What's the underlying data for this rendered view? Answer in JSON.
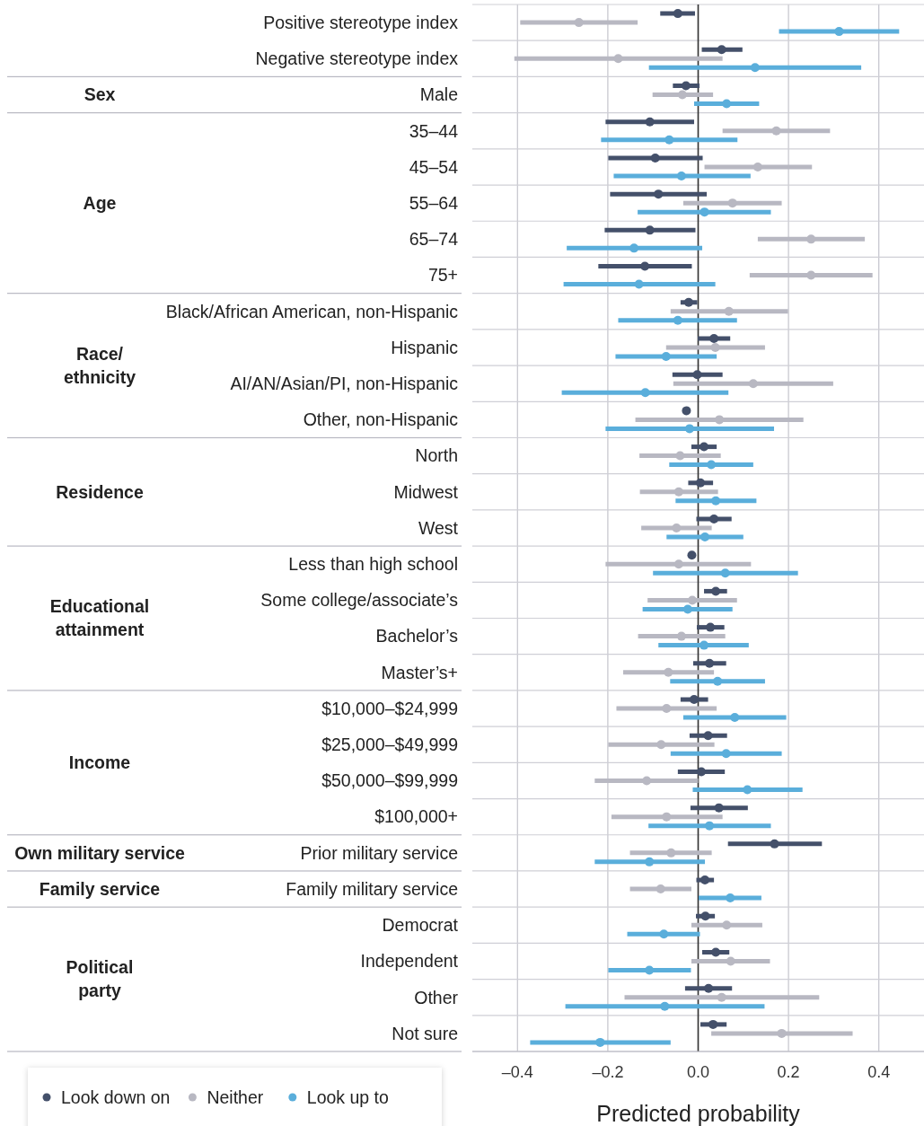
{
  "chart_data": {
    "type": "scatter",
    "orientation": "horizontal",
    "xlabel": "Predicted probability",
    "categories": [
      "Positive stereotype index",
      "Negative stereotype index",
      "Male",
      "35–44",
      "45–54",
      "55–64",
      "65–74",
      "75+",
      "Black/African American, non-Hispanic",
      "Hispanic",
      "AI/AN/Asian/PI, non-Hispanic",
      "Other, non-Hispanic",
      "North",
      "Midwest",
      "West",
      "Less than high school",
      "Some college/associate’s",
      "Bachelor’s",
      "Master’s+",
      "$10,000–$24,999",
      "$25,000–$49,999",
      "$50,000–$99,999",
      "$100,000+",
      "Prior military service",
      "Family military service",
      "Democrat",
      "Independent",
      "Other",
      "Not sure"
    ],
    "annotations": [
      "Sex",
      "Age",
      "Race/\nethnicity",
      "Residence",
      "Educational\nattainment",
      "Income",
      "Own military service",
      "Family service",
      "Political\nparty"
    ],
    "series": [
      {
        "name": "Look down on",
        "color": "#44506a",
        "values": [
          -0.045,
          0.052,
          -0.027,
          -0.107,
          -0.095,
          -0.088,
          -0.107,
          -0.118,
          -0.021,
          0.035,
          -0.002,
          -0.026,
          0.013,
          0.005,
          0.035,
          -0.014,
          0.039,
          0.027,
          0.025,
          -0.009,
          0.022,
          0.007,
          0.046,
          0.169,
          0.015,
          0.016,
          0.039,
          0.023,
          0.033
        ],
        "errors": [
          [
            -0.084,
            -0.007
          ],
          [
            0.008,
            0.098
          ],
          [
            -0.056,
            0.003
          ],
          [
            -0.205,
            -0.009
          ],
          [
            -0.199,
            0.01
          ],
          [
            -0.195,
            0.019
          ],
          [
            -0.207,
            -0.006
          ],
          [
            -0.221,
            -0.014
          ],
          [
            -0.039,
            -0.002
          ],
          [
            -0.001,
            0.071
          ],
          [
            -0.057,
            0.054
          ],
          null,
          [
            -0.015,
            0.041
          ],
          [
            -0.022,
            0.033
          ],
          [
            -0.004,
            0.074
          ],
          null,
          [
            0.013,
            0.064
          ],
          [
            -0.003,
            0.058
          ],
          [
            -0.011,
            0.062
          ],
          [
            -0.039,
            0.022
          ],
          [
            -0.019,
            0.064
          ],
          [
            -0.045,
            0.059
          ],
          [
            -0.017,
            0.11
          ],
          [
            0.066,
            0.274
          ],
          [
            -0.004,
            0.035
          ],
          [
            -0.005,
            0.037
          ],
          [
            0.009,
            0.069
          ],
          [
            -0.029,
            0.075
          ],
          [
            0.005,
            0.063
          ]
        ]
      },
      {
        "name": "Neither",
        "color": "#b8b8c2",
        "values": [
          -0.264,
          -0.177,
          -0.035,
          0.173,
          0.132,
          0.076,
          0.25,
          0.25,
          0.068,
          0.038,
          0.122,
          0.047,
          -0.04,
          -0.043,
          -0.048,
          -0.043,
          -0.013,
          -0.037,
          -0.066,
          -0.07,
          -0.082,
          -0.114,
          -0.07,
          -0.06,
          -0.083,
          0.063,
          0.072,
          0.052,
          0.185
        ],
        "errors": [
          [
            -0.394,
            -0.134
          ],
          [
            -0.407,
            0.054
          ],
          [
            -0.101,
            0.033
          ],
          [
            0.054,
            0.292
          ],
          [
            0.014,
            0.252
          ],
          [
            -0.033,
            0.185
          ],
          [
            0.132,
            0.369
          ],
          [
            0.114,
            0.386
          ],
          [
            -0.061,
            0.199
          ],
          [
            -0.071,
            0.148
          ],
          [
            -0.055,
            0.299
          ],
          [
            -0.139,
            0.233
          ],
          [
            -0.13,
            0.05
          ],
          [
            -0.129,
            0.044
          ],
          [
            -0.126,
            0.03
          ],
          [
            -0.205,
            0.117
          ],
          [
            -0.112,
            0.086
          ],
          [
            -0.133,
            0.06
          ],
          [
            -0.166,
            0.035
          ],
          [
            -0.181,
            0.041
          ],
          [
            -0.199,
            0.036
          ],
          [
            -0.229,
            0.0
          ],
          [
            -0.192,
            0.054
          ],
          [
            -0.151,
            0.03
          ],
          [
            -0.151,
            -0.015
          ],
          [
            -0.015,
            0.142
          ],
          [
            -0.015,
            0.159
          ],
          [
            -0.163,
            0.268
          ],
          [
            0.029,
            0.342
          ]
        ]
      },
      {
        "name": "Look up to",
        "color": "#5aaedb",
        "values": [
          0.312,
          0.126,
          0.063,
          -0.064,
          -0.037,
          0.014,
          -0.142,
          -0.131,
          -0.045,
          -0.071,
          -0.117,
          -0.019,
          0.029,
          0.039,
          0.015,
          0.06,
          -0.023,
          0.013,
          0.043,
          0.081,
          0.062,
          0.109,
          0.025,
          -0.108,
          0.071,
          -0.076,
          -0.108,
          -0.074,
          -0.217
        ],
        "errors": [
          [
            0.179,
            0.445
          ],
          [
            -0.109,
            0.361
          ],
          [
            -0.009,
            0.135
          ],
          [
            -0.215,
            0.087
          ],
          [
            -0.187,
            0.116
          ],
          [
            -0.134,
            0.161
          ],
          [
            -0.291,
            0.009
          ],
          [
            -0.298,
            0.038
          ],
          [
            -0.177,
            0.086
          ],
          [
            -0.183,
            0.041
          ],
          [
            -0.302,
            0.067
          ],
          [
            -0.205,
            0.168
          ],
          [
            -0.064,
            0.122
          ],
          [
            -0.05,
            0.129
          ],
          [
            -0.07,
            0.1
          ],
          [
            -0.1,
            0.221
          ],
          [
            -0.123,
            0.076
          ],
          [
            -0.088,
            0.112
          ],
          [
            -0.062,
            0.148
          ],
          [
            -0.033,
            0.195
          ],
          [
            -0.061,
            0.185
          ],
          [
            -0.012,
            0.231
          ],
          [
            -0.11,
            0.161
          ],
          [
            -0.229,
            0.015
          ],
          [
            0.001,
            0.14
          ],
          [
            -0.157,
            0.004
          ],
          [
            -0.199,
            -0.016
          ],
          [
            -0.294,
            0.147
          ],
          [
            -0.372,
            -0.061
          ]
        ]
      }
    ],
    "xlim": [
      -0.5,
      0.5
    ],
    "xticks": [
      {
        "value": -0.4,
        "label": "–0.4"
      },
      {
        "value": -0.2,
        "label": "–0.2"
      },
      {
        "value": 0,
        "label": "0.0"
      },
      {
        "value": 0.2,
        "label": "0.2"
      },
      {
        "value": 0.4,
        "label": "0.4"
      }
    ],
    "ref_lines": [
      {
        "axis": "x",
        "value": 0,
        "color": "#333333"
      }
    ],
    "grid": true,
    "legend": "bottom left",
    "marker": "circle"
  }
}
